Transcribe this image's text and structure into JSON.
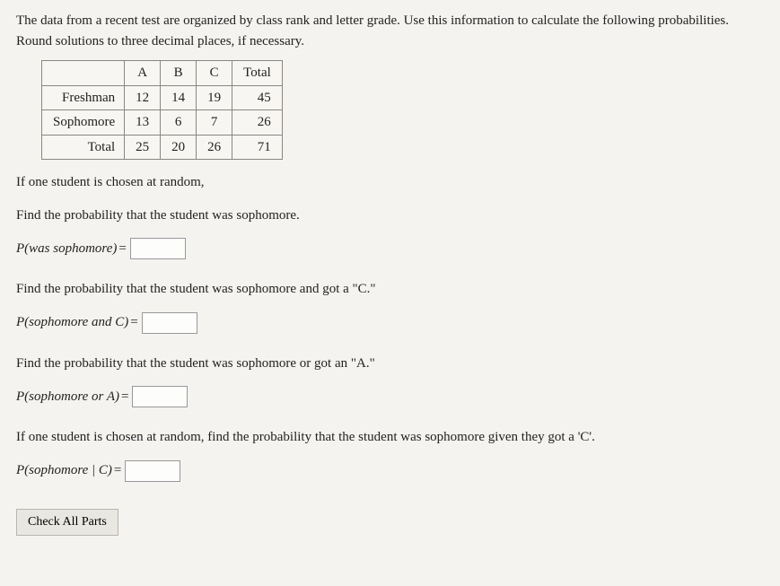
{
  "prompt_text": "The data from a recent test are organized by class rank and letter grade. Use this information to calculate the following probabilities. Round solutions to three decimal places, if necessary.",
  "table": {
    "col_headers": [
      "A",
      "B",
      "C",
      "Total"
    ],
    "rows": [
      {
        "label": "Freshman",
        "cells": [
          "12",
          "14",
          "19"
        ],
        "total": "45"
      },
      {
        "label": "Sophomore",
        "cells": [
          "13",
          "6",
          "7"
        ],
        "total": "26"
      },
      {
        "label": "Total",
        "cells": [
          "25",
          "20",
          "26"
        ],
        "total": "71"
      }
    ]
  },
  "intro_line": "If one student is chosen at random,",
  "q1": {
    "question": "Find the probability that the student was sophomore.",
    "label_P": "P",
    "label_inner": "(was sophomore)",
    "value": ""
  },
  "q2": {
    "question": "Find the probability that the student was sophomore and got a \"C.\"",
    "label_P": "P",
    "label_inner": "(sophomore and C)",
    "value": ""
  },
  "q3": {
    "question": "Find the probability that the student was sophomore or got an \"A.\"",
    "label_P": "P",
    "label_inner": "(sophomore or A)",
    "value": ""
  },
  "q4": {
    "question": "If one student is chosen at random, find the probability that the student was sophomore given they got a 'C'.",
    "label_P": "P",
    "label_inner": "(sophomore | C)",
    "value": ""
  },
  "check_button_label": "Check All Parts"
}
